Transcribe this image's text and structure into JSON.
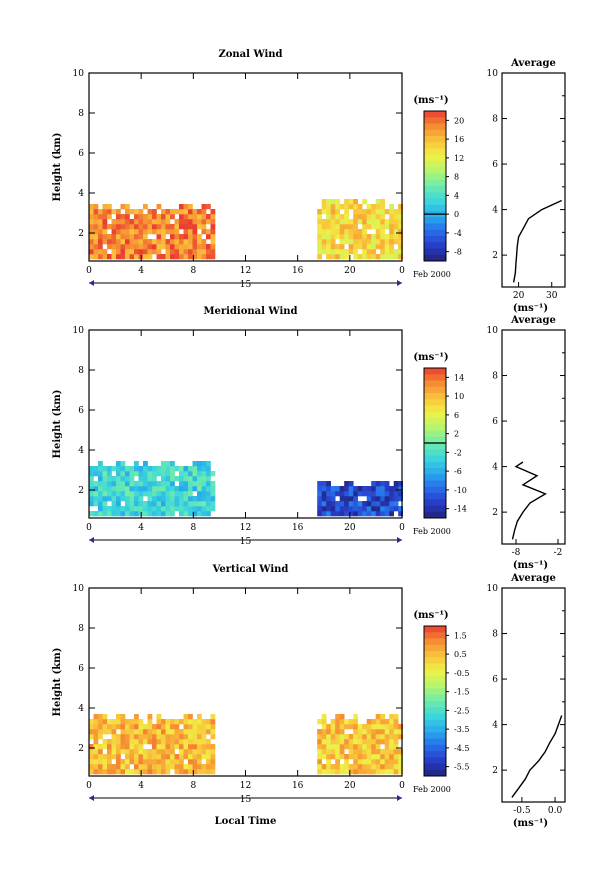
{
  "figure": {
    "panels": [
      {
        "title": "Zonal Wind",
        "ylabel": "Height (km)",
        "colorbar_label": "(ms⁻¹)",
        "colorbar_ticks": [
          "20",
          "16",
          "12",
          "8",
          "4",
          "0",
          "-4",
          "-8"
        ],
        "date_label": "Feb 2000",
        "date_day": "15",
        "avg_title": "Average",
        "avg_xlabel": "(ms⁻¹)",
        "avg_xticks": [
          "20",
          "30"
        ]
      },
      {
        "title": "Meridional Wind",
        "ylabel": "Height (km)",
        "colorbar_label": "(ms⁻¹)",
        "colorbar_ticks": [
          "14",
          "10",
          "6",
          "2",
          "-2",
          "-6",
          "-10",
          "-14"
        ],
        "date_label": "Feb 2000",
        "date_day": "15",
        "avg_title": "Average",
        "avg_xlabel": "(ms⁻¹)",
        "avg_xticks": [
          "-8",
          "-2"
        ]
      },
      {
        "title": "Vertical Wind",
        "ylabel": "Height (km)",
        "colorbar_label": "(ms⁻¹)",
        "colorbar_ticks": [
          "1.5",
          "0.5",
          "-0.5",
          "-1.5",
          "-2.5",
          "-3.5",
          "-4.5",
          "-5.5"
        ],
        "date_label": "Feb 2000",
        "date_day": "15",
        "avg_title": "Average",
        "avg_xlabel": "(ms⁻¹)",
        "avg_xticks": [
          "-0.5",
          "0.0"
        ],
        "xlabel": "Local Time"
      }
    ]
  },
  "chart_data": [
    {
      "type": "heatmap",
      "title": "Zonal Wind",
      "xlabel": "",
      "ylabel": "Height (km)",
      "x_ticks": [
        "0",
        "4",
        "8",
        "12",
        "16",
        "20",
        "0"
      ],
      "y_ticks": [
        "2",
        "4",
        "6",
        "8",
        "10"
      ],
      "xlim": [
        0,
        24
      ],
      "ylim": [
        0.6,
        10
      ],
      "color_range": [
        -10,
        22
      ],
      "color_ticks": [
        20,
        16,
        12,
        8,
        4,
        0,
        -4,
        -8
      ],
      "data_blocks": [
        {
          "x_range": [
            0,
            9.5
          ],
          "height_range": [
            0.7,
            3.2
          ],
          "typical_value": 19
        },
        {
          "x_range": [
            17.5,
            24
          ],
          "height_range": [
            0.7,
            3.4
          ],
          "typical_value": 14
        }
      ],
      "average_profile": {
        "title": "Average",
        "xlabel": "(ms⁻¹)",
        "xlim": [
          15,
          34
        ],
        "x_ticks": [
          20,
          30
        ],
        "height": [
          0.8,
          1.2,
          1.6,
          2.0,
          2.4,
          2.8,
          3.2,
          3.6,
          4.0,
          4.4
        ],
        "value": [
          18.5,
          19.0,
          19.2,
          19.4,
          19.6,
          20.0,
          21.5,
          23.0,
          27.0,
          33.0
        ]
      }
    },
    {
      "type": "heatmap",
      "title": "Meridional Wind",
      "xlabel": "",
      "ylabel": "Height (km)",
      "x_ticks": [
        "0",
        "4",
        "8",
        "12",
        "16",
        "20",
        "0"
      ],
      "y_ticks": [
        "2",
        "4",
        "6",
        "8",
        "10"
      ],
      "xlim": [
        0,
        24
      ],
      "ylim": [
        0.6,
        10
      ],
      "color_range": [
        -16,
        16
      ],
      "color_ticks": [
        14,
        10,
        6,
        2,
        -2,
        -6,
        -10,
        -14
      ],
      "data_blocks": [
        {
          "x_range": [
            0,
            9.5
          ],
          "height_range": [
            0.7,
            3.2
          ],
          "typical_value": -3
        },
        {
          "x_range": [
            17.5,
            24
          ],
          "height_range": [
            0.7,
            2.2
          ],
          "typical_value": -12
        }
      ],
      "average_profile": {
        "title": "Average",
        "xlabel": "(ms⁻¹)",
        "xlim": [
          -10,
          -1
        ],
        "x_ticks": [
          -8,
          -2
        ],
        "height": [
          0.8,
          1.2,
          1.6,
          2.0,
          2.4,
          2.8,
          3.2,
          3.6,
          4.0,
          4.2
        ],
        "value": [
          -8.5,
          -8.2,
          -7.8,
          -7.0,
          -6.0,
          -3.8,
          -7.0,
          -5.0,
          -8.0,
          -7.0
        ]
      }
    },
    {
      "type": "heatmap",
      "title": "Vertical Wind",
      "xlabel": "Local Time",
      "ylabel": "Height (km)",
      "x_ticks": [
        "0",
        "4",
        "8",
        "12",
        "16",
        "20",
        "0"
      ],
      "y_ticks": [
        "2",
        "4",
        "6",
        "8",
        "10"
      ],
      "xlim": [
        0,
        24
      ],
      "ylim": [
        0.6,
        10
      ],
      "color_range": [
        -6,
        2
      ],
      "color_ticks": [
        1.5,
        0.5,
        -0.5,
        -1.5,
        -2.5,
        -3.5,
        -4.5,
        -5.5
      ],
      "data_blocks": [
        {
          "x_range": [
            0,
            9.5
          ],
          "height_range": [
            0.7,
            3.4
          ],
          "typical_value": 0.5
        },
        {
          "x_range": [
            17.5,
            24
          ],
          "height_range": [
            0.7,
            3.4
          ],
          "typical_value": 0.3
        }
      ],
      "average_profile": {
        "title": "Average",
        "xlabel": "(ms⁻¹)",
        "xlim": [
          -0.8,
          0.15
        ],
        "x_ticks": [
          -0.5,
          0.0
        ],
        "height": [
          0.8,
          1.2,
          1.6,
          2.0,
          2.4,
          2.8,
          3.2,
          3.6,
          4.0,
          4.4
        ],
        "value": [
          -0.65,
          -0.55,
          -0.45,
          -0.38,
          -0.25,
          -0.15,
          -0.08,
          0.0,
          0.05,
          0.1
        ]
      }
    }
  ]
}
